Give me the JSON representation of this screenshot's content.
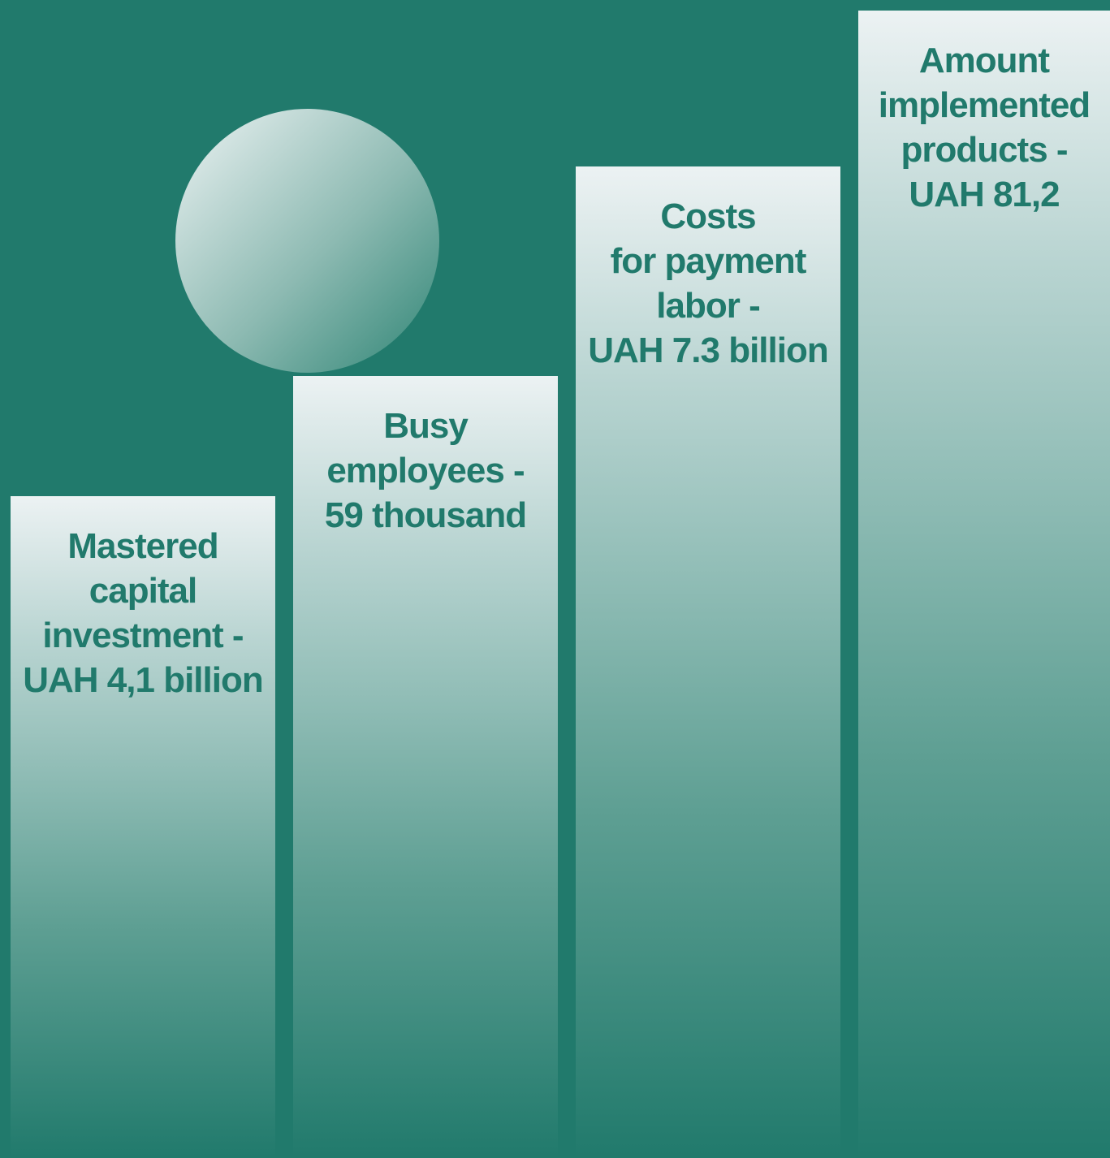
{
  "colors": {
    "background": "#217a6c",
    "text": "#217a6c",
    "column_top": "#ecf2f3",
    "column_bottom": "#217a6c",
    "sphere_light": "#eef4f4",
    "sphere_dark": "#2f8575"
  },
  "columns": [
    {
      "lines": [
        "Mastered",
        "capital",
        "investment -",
        "UAH 4,1 billion"
      ]
    },
    {
      "lines": [
        "Busy",
        "employees -",
        "59 thousand"
      ]
    },
    {
      "lines": [
        "Costs",
        "for payment",
        "labor -",
        "UAH 7.3 billion"
      ]
    },
    {
      "lines": [
        "Amount",
        "implemented",
        "products -",
        "UAH 81,2"
      ]
    }
  ]
}
